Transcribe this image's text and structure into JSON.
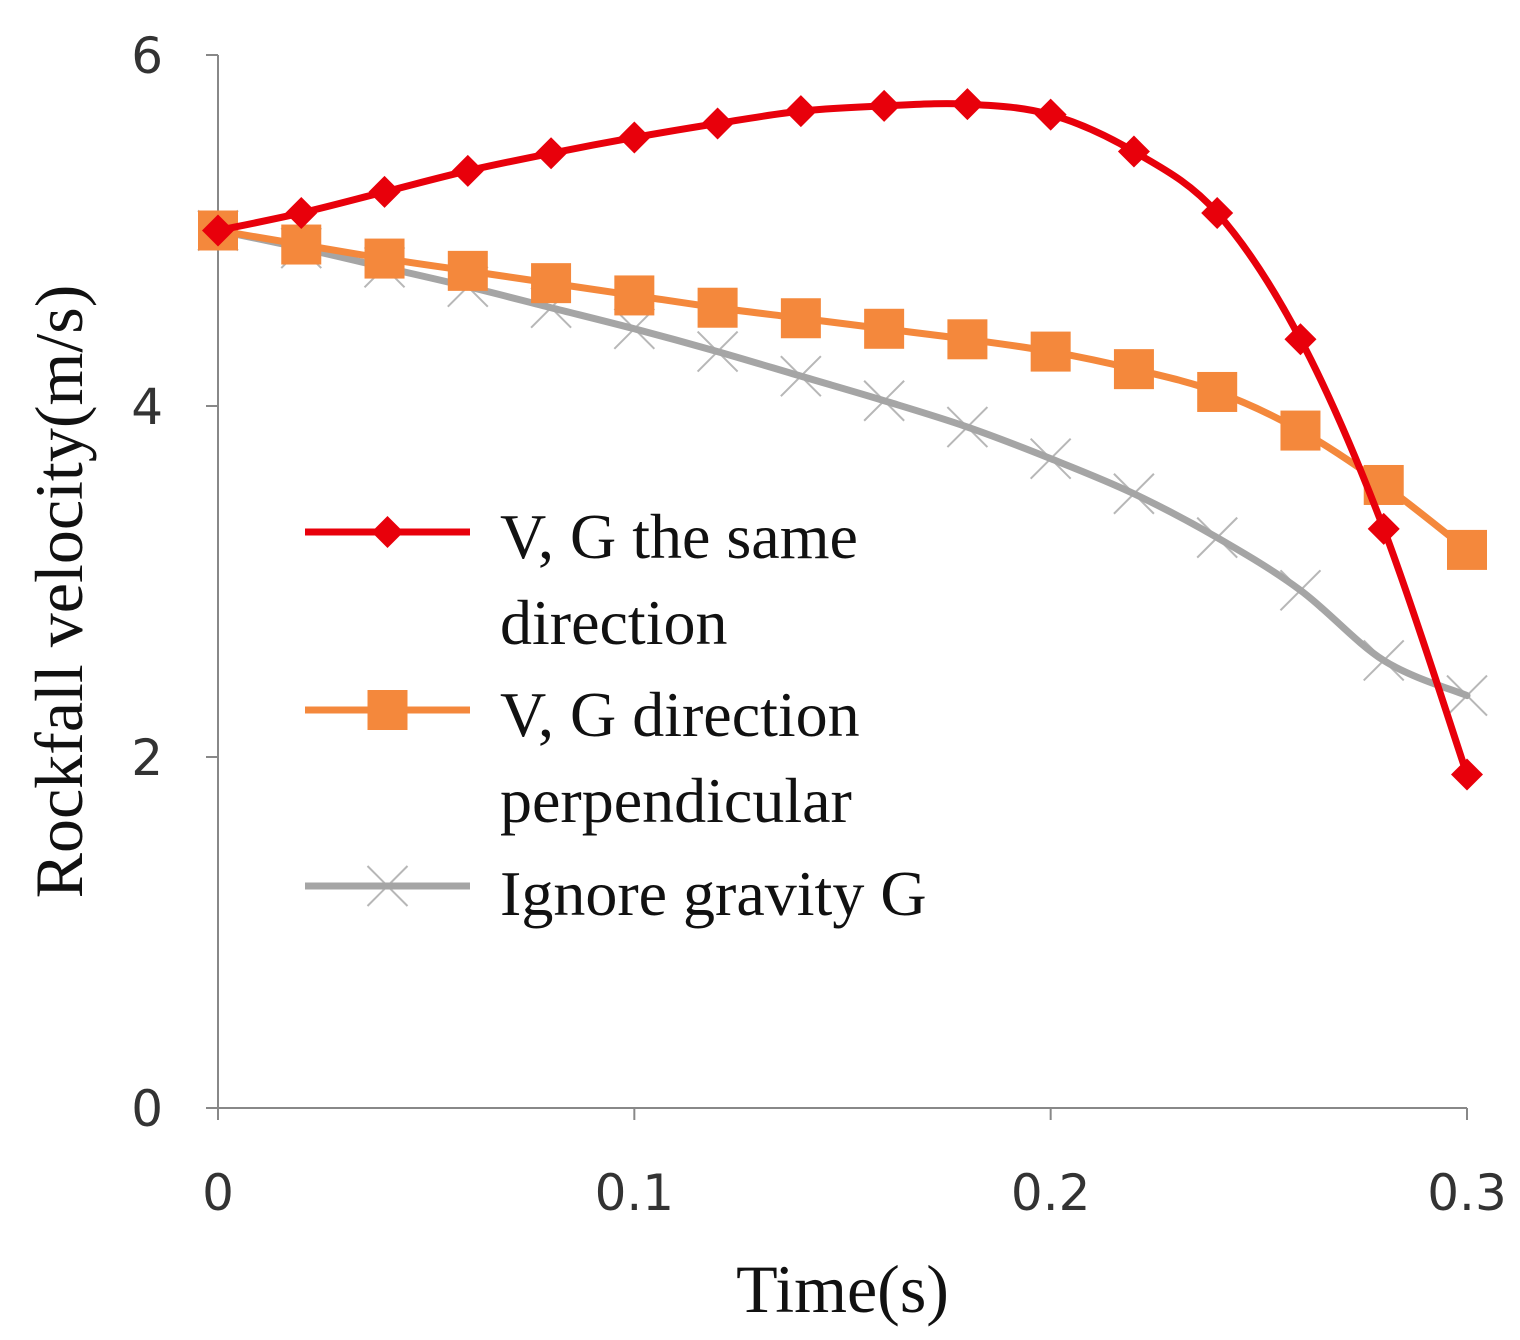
{
  "chart_data": {
    "type": "line",
    "title": "",
    "xlabel": "Time(s)",
    "ylabel": "Rockfall velocity(m/s)",
    "xlim": [
      0,
      0.3
    ],
    "ylim": [
      0,
      6
    ],
    "xticks": [
      0,
      0.1,
      0.2,
      0.3
    ],
    "xtick_labels": [
      "0",
      "0.1",
      "0.2",
      "0.3"
    ],
    "yticks": [
      0,
      2,
      4,
      6
    ],
    "ytick_labels": [
      "0",
      "2",
      "4",
      "6"
    ],
    "grid": false,
    "legend_position": "center-left",
    "x": [
      0,
      0.02,
      0.04,
      0.06,
      0.08,
      0.1,
      0.12,
      0.14,
      0.16,
      0.18,
      0.2,
      0.22,
      0.24,
      0.26,
      0.28,
      0.3
    ],
    "series": [
      {
        "name": "V, G the same direction",
        "legend_lines": [
          "V, G the same",
          "direction"
        ],
        "color": "#e8000b",
        "marker": "diamond",
        "values": [
          5.0,
          5.1,
          5.22,
          5.34,
          5.44,
          5.53,
          5.61,
          5.68,
          5.71,
          5.72,
          5.66,
          5.45,
          5.1,
          4.38,
          3.3,
          1.9
        ]
      },
      {
        "name": "V, G direction perpendicular",
        "legend_lines": [
          "V, G direction",
          "perpendicular"
        ],
        "color": "#f4883c",
        "marker": "square",
        "values": [
          5.0,
          4.92,
          4.84,
          4.77,
          4.7,
          4.63,
          4.56,
          4.5,
          4.44,
          4.38,
          4.31,
          4.21,
          4.08,
          3.86,
          3.55,
          3.18
        ]
      },
      {
        "name": "Ignore gravity G",
        "legend_lines": [
          "Ignore gravity G"
        ],
        "color": "#a5a5a5",
        "marker": "x",
        "values": [
          5.0,
          4.9,
          4.79,
          4.68,
          4.56,
          4.44,
          4.31,
          4.17,
          4.03,
          3.88,
          3.7,
          3.5,
          3.25,
          2.95,
          2.55,
          2.35
        ]
      }
    ]
  }
}
